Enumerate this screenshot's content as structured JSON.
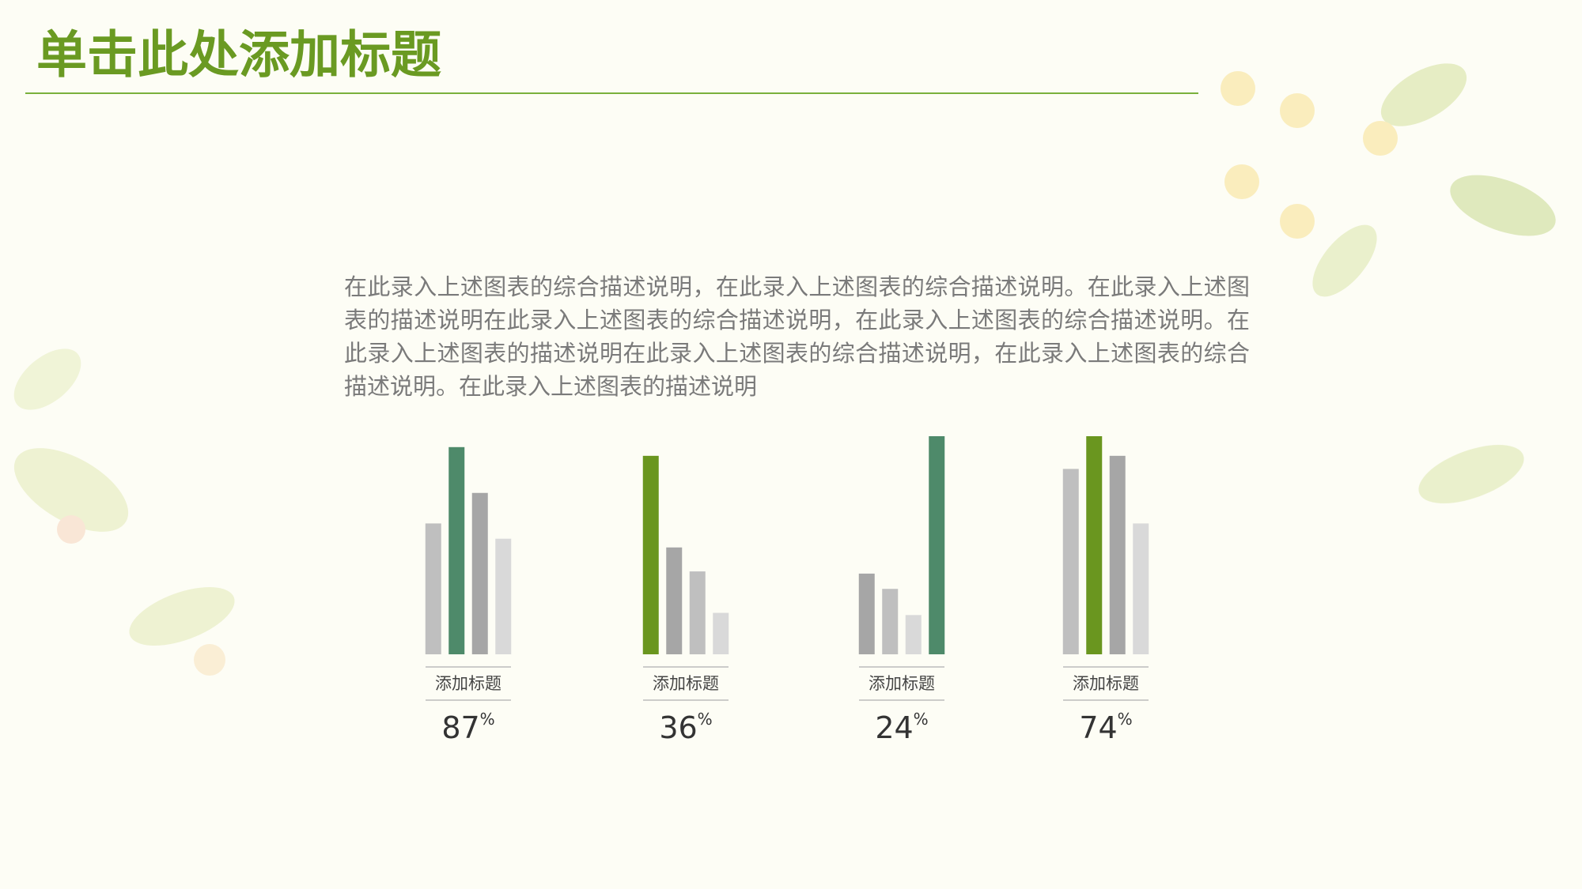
{
  "header": {
    "title": "单击此处添加标题"
  },
  "description": "在此录入上述图表的综合描述说明，在此录入上述图表的综合描述说明。在此录入上述图表的描述说明在此录入上述图表的综合描述说明，在此录入上述图表的综合描述说明。在此录入上述图表的描述说明在此录入上述图表的综合描述说明，在此录入上述图表的综合描述说明。在此录入上述图表的描述说明",
  "chart_data": [
    {
      "type": "bar",
      "title": "添加标题",
      "values": [
        60,
        95,
        74,
        53
      ],
      "colors": [
        "#bfbfbf",
        "#4e8a6a",
        "#a6a6a6",
        "#d9d9d9"
      ],
      "ylim": [
        0,
        100
      ],
      "percent": 87,
      "percent_unit": "%"
    },
    {
      "type": "bar",
      "title": "添加标题",
      "values": [
        91,
        49,
        38,
        19
      ],
      "colors": [
        "#6a961f",
        "#a6a6a6",
        "#bfbfbf",
        "#d9d9d9"
      ],
      "ylim": [
        0,
        100
      ],
      "percent": 36,
      "percent_unit": "%"
    },
    {
      "type": "bar",
      "title": "添加标题",
      "values": [
        37,
        30,
        18,
        100
      ],
      "colors": [
        "#a6a6a6",
        "#bfbfbf",
        "#d9d9d9",
        "#4e8a6a"
      ],
      "ylim": [
        0,
        100
      ],
      "percent": 24,
      "percent_unit": "%"
    },
    {
      "type": "bar",
      "title": "添加标题",
      "values": [
        85,
        100,
        91,
        60
      ],
      "colors": [
        "#bfbfbf",
        "#6a961f",
        "#a6a6a6",
        "#d9d9d9"
      ],
      "ylim": [
        0,
        100
      ],
      "percent": 74,
      "percent_unit": "%"
    }
  ]
}
